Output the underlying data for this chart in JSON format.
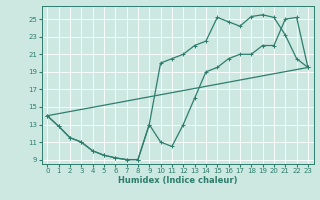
{
  "title": "",
  "xlabel": "Humidex (Indice chaleur)",
  "bg_color": "#cce8e0",
  "grid_color": "#ffffff",
  "line_color": "#2e7d6e",
  "xlim": [
    -0.5,
    23.5
  ],
  "ylim": [
    8.5,
    26.5
  ],
  "xticks": [
    0,
    1,
    2,
    3,
    4,
    5,
    6,
    7,
    8,
    9,
    10,
    11,
    12,
    13,
    14,
    15,
    16,
    17,
    18,
    19,
    20,
    21,
    22,
    23
  ],
  "yticks": [
    9,
    11,
    13,
    15,
    17,
    19,
    21,
    23,
    25
  ],
  "series1_x": [
    0,
    1,
    2,
    3,
    4,
    5,
    6,
    7,
    8,
    9,
    10,
    11,
    12,
    13,
    14,
    15,
    16,
    17,
    18,
    19,
    20,
    21,
    22,
    23
  ],
  "series1_y": [
    14.0,
    12.8,
    11.5,
    11.0,
    10.0,
    9.5,
    9.2,
    9.0,
    9.0,
    13.0,
    11.0,
    10.5,
    13.0,
    16.0,
    19.0,
    19.5,
    20.5,
    21.0,
    21.0,
    22.0,
    22.0,
    25.0,
    25.2,
    19.5
  ],
  "series2_x": [
    0,
    1,
    2,
    3,
    4,
    5,
    6,
    7,
    8,
    9,
    10,
    11,
    12,
    13,
    14,
    15,
    16,
    17,
    18,
    19,
    20,
    21,
    22,
    23
  ],
  "series2_y": [
    14.0,
    12.8,
    11.5,
    11.0,
    10.0,
    9.5,
    9.2,
    9.0,
    9.0,
    13.0,
    20.0,
    20.5,
    21.0,
    22.0,
    22.5,
    25.2,
    24.7,
    24.2,
    25.3,
    25.5,
    25.2,
    23.2,
    20.5,
    19.5
  ],
  "series3_x": [
    0,
    23
  ],
  "series3_y": [
    14.0,
    19.5
  ]
}
